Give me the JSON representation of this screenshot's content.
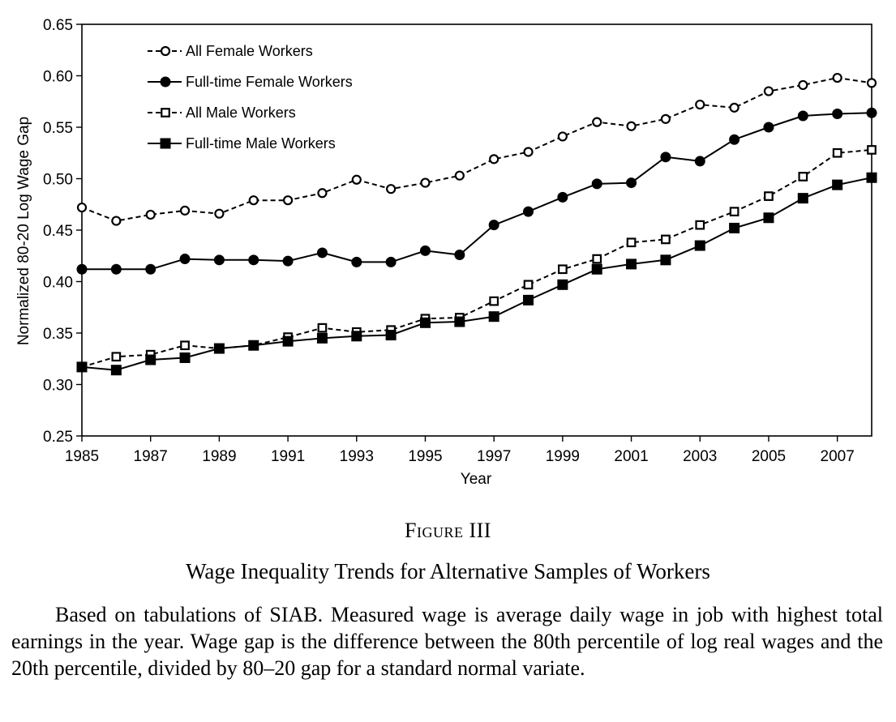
{
  "chart_data": {
    "type": "line",
    "title": "",
    "xlabel": "Year",
    "ylabel": "Normalized 80-20 Log Wage Gap",
    "xlim": [
      1985,
      2008
    ],
    "ylim": [
      0.25,
      0.65
    ],
    "x_ticks": [
      1985,
      1987,
      1989,
      1991,
      1993,
      1995,
      1997,
      1999,
      2001,
      2003,
      2005,
      2007
    ],
    "y_ticks": [
      "0.25",
      "0.30",
      "0.35",
      "0.40",
      "0.45",
      "0.50",
      "0.55",
      "0.60",
      "0.65"
    ],
    "legend_position": "top-left",
    "grid": false,
    "x": [
      1985,
      1986,
      1987,
      1988,
      1989,
      1990,
      1991,
      1992,
      1993,
      1994,
      1995,
      1996,
      1997,
      1998,
      1999,
      2000,
      2001,
      2002,
      2003,
      2004,
      2005,
      2006,
      2007,
      2008
    ],
    "series": [
      {
        "name": "All Female Workers",
        "style": "dashed",
        "marker": "open-circle",
        "values": [
          0.472,
          0.459,
          0.465,
          0.469,
          0.466,
          0.479,
          0.479,
          0.486,
          0.499,
          0.49,
          0.496,
          0.503,
          0.519,
          0.526,
          0.541,
          0.555,
          0.551,
          0.558,
          0.572,
          0.569,
          0.585,
          0.591,
          0.598,
          0.593
        ]
      },
      {
        "name": "Full-time Female Workers",
        "style": "solid",
        "marker": "filled-circle",
        "values": [
          0.412,
          0.412,
          0.412,
          0.422,
          0.421,
          0.421,
          0.42,
          0.428,
          0.419,
          0.419,
          0.43,
          0.426,
          0.455,
          0.468,
          0.482,
          0.495,
          0.496,
          0.521,
          0.517,
          0.538,
          0.55,
          0.561,
          0.563,
          0.564
        ]
      },
      {
        "name": "All Male Workers",
        "style": "dashed",
        "marker": "open-square",
        "values": [
          0.317,
          0.327,
          0.329,
          0.338,
          0.335,
          0.338,
          0.346,
          0.355,
          0.351,
          0.353,
          0.364,
          0.365,
          0.381,
          0.397,
          0.412,
          0.422,
          0.438,
          0.441,
          0.455,
          0.468,
          0.483,
          0.502,
          0.525,
          0.528
        ]
      },
      {
        "name": "Full-time Male Workers",
        "style": "solid",
        "marker": "filled-square",
        "values": [
          0.317,
          0.314,
          0.324,
          0.326,
          0.335,
          0.338,
          0.342,
          0.345,
          0.347,
          0.348,
          0.36,
          0.361,
          0.366,
          0.382,
          0.397,
          0.412,
          0.417,
          0.421,
          0.435,
          0.452,
          0.462,
          0.481,
          0.494,
          0.501
        ]
      }
    ]
  },
  "caption": {
    "figure_label": "Figure III",
    "title": "Wage Inequality Trends for Alternative Samples of Workers",
    "note": "Based on tabulations of SIAB. Measured wage is average daily wage in job with highest total earnings in the year. Wage gap is the difference between the 80th percentile of log real wages and the 20th percentile, divided by 80–20 gap for a standard normal variate."
  }
}
